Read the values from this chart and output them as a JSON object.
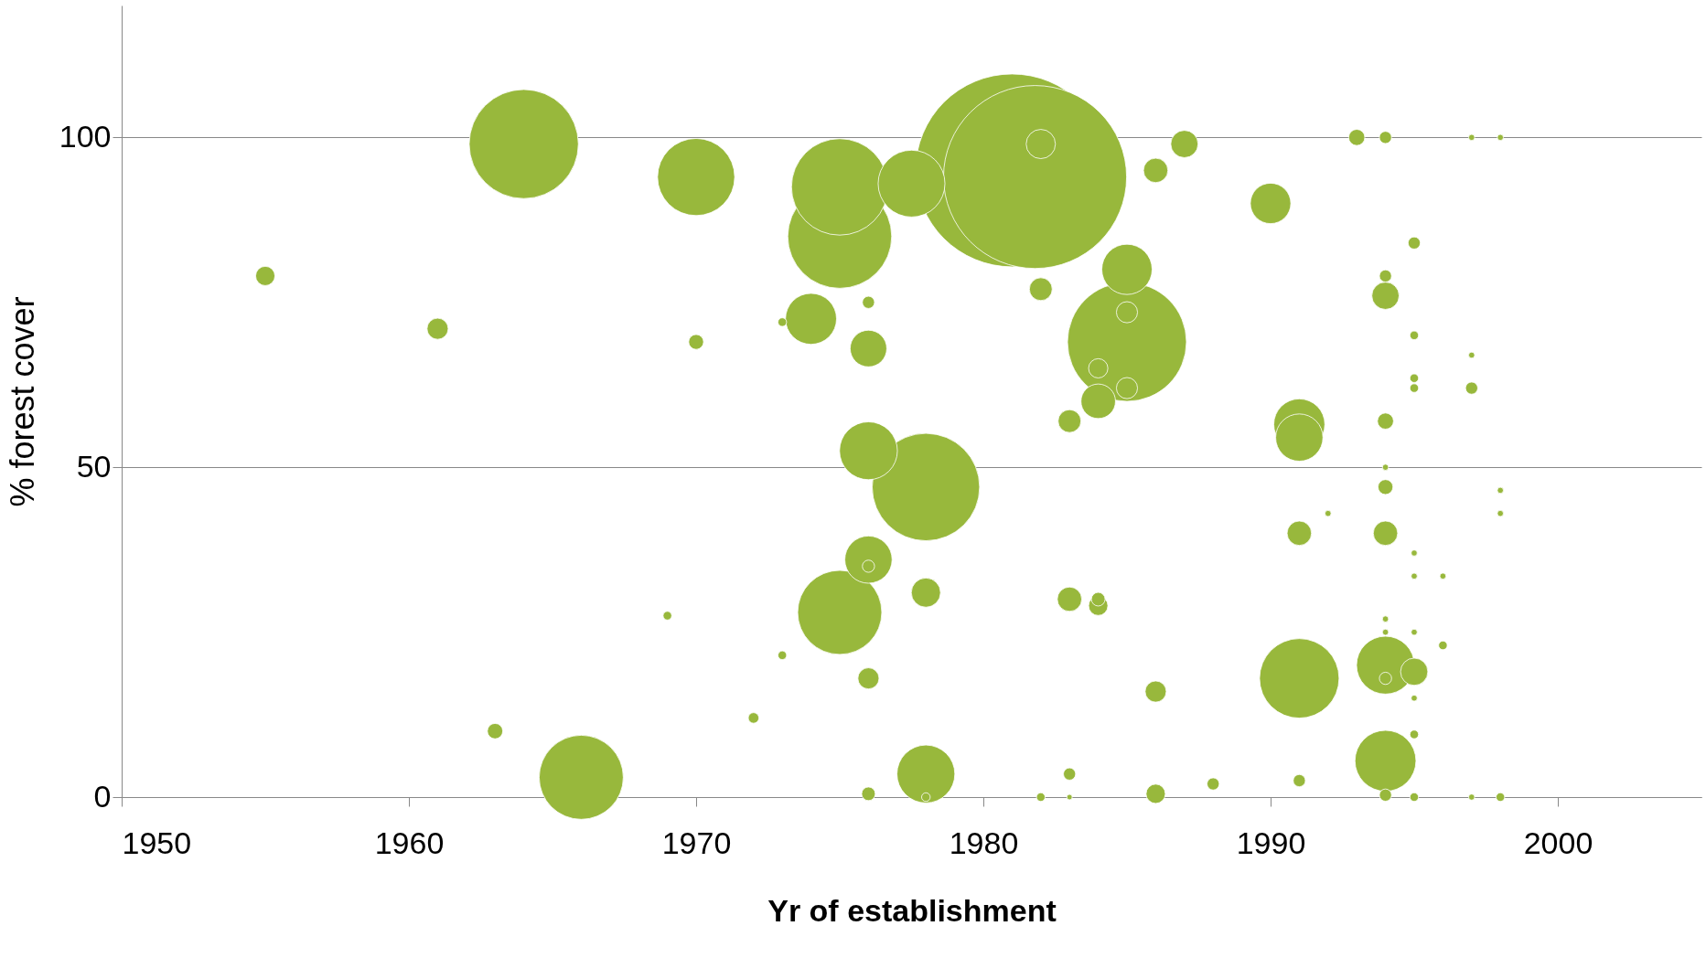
{
  "chart_data": {
    "type": "bubble",
    "xlabel": "Yr of establishment",
    "ylabel": "% forest cover",
    "xlim": [
      1950,
      2005
    ],
    "xticks": [
      1950,
      1960,
      1970,
      1980,
      1990,
      2000
    ],
    "ylim": [
      0,
      120
    ],
    "yticks": [
      0,
      50,
      100
    ],
    "grid": "y",
    "series": [
      {
        "color": "#98b83c",
        "x": [
          1955,
          1961,
          1963,
          1964,
          1966,
          1969,
          1970,
          1970,
          1972,
          1973,
          1973,
          1974,
          1975,
          1975,
          1975,
          1976,
          1976,
          1976,
          1976,
          1976,
          1976,
          1976,
          1977.5,
          1978,
          1978,
          1978,
          1978,
          1981.8,
          1981,
          1982,
          1982,
          1982,
          1983,
          1983,
          1983,
          1983,
          1984,
          1984,
          1984,
          1984,
          1985,
          1985,
          1985,
          1985,
          1986,
          1986,
          1986,
          1987,
          1988,
          1990,
          1991,
          1991,
          1991,
          1991,
          1991,
          1992,
          1993,
          1994,
          1994,
          1994,
          1994,
          1994,
          1994,
          1994,
          1994,
          1994,
          1994,
          1994,
          1994,
          1994,
          1995,
          1995,
          1995,
          1995,
          1995,
          1995,
          1995,
          1995,
          1995,
          1995,
          1995,
          1996,
          1996,
          1997,
          1997,
          1997,
          1997,
          1998,
          1998,
          1998,
          1998
        ],
        "values": [
          79,
          71,
          10,
          99,
          3,
          27.5,
          94,
          69,
          12,
          21.5,
          72,
          72.5,
          92.5,
          85,
          28,
          75,
          68,
          52.5,
          36,
          35,
          18,
          0.5,
          93,
          47,
          31,
          3.5,
          0,
          94,
          95,
          99,
          77,
          0,
          57,
          30,
          3.5,
          0,
          65,
          60,
          30,
          29,
          80,
          69,
          73.5,
          62,
          95,
          16,
          0.5,
          99,
          2,
          90,
          56.5,
          54.5,
          40,
          18,
          2.5,
          43,
          100,
          100,
          79,
          76,
          57,
          47,
          50,
          40,
          27,
          25,
          20,
          18,
          5.5,
          0.3,
          84,
          70,
          63.5,
          62,
          37,
          33.5,
          25,
          19,
          15,
          9.5,
          0,
          33.5,
          23,
          100,
          67,
          62,
          0,
          100,
          46.5,
          43,
          0
        ],
        "sizes": [
          0.01,
          0.012,
          0.0064,
          0.32,
          0.19,
          0.002,
          0.16,
          0.006,
          0.003,
          0.002,
          0.002,
          0.07,
          0.25,
          0.29,
          0.19,
          0.004,
          0.036,
          0.09,
          0.06,
          0.004,
          0.012,
          0.005,
          0.12,
          0.31,
          0.023,
          0.09,
          0.002,
          0.9,
          1,
          0.023,
          0.014,
          0.002,
          0.014,
          0.016,
          0.004,
          0.0008,
          0.01,
          0.032,
          0.005,
          0.01,
          0.068,
          0.38,
          0.012,
          0.012,
          0.016,
          0.012,
          0.01,
          0.02,
          0.004,
          0.044,
          0.07,
          0.06,
          0.016,
          0.17,
          0.004,
          0.001,
          0.007,
          0.004,
          0.004,
          0.02,
          0.007,
          0.006,
          0.001,
          0.016,
          0.001,
          0.001,
          0.09,
          0.004,
          0.1,
          0.004,
          0.004,
          0.002,
          0.002,
          0.002,
          0.001,
          0.001,
          0.001,
          0.02,
          0.001,
          0.002,
          0.002,
          0.001,
          0.002,
          0.001,
          0.001,
          0.004,
          0.001,
          0.001,
          0.001,
          0.001,
          0.002
        ]
      }
    ]
  }
}
